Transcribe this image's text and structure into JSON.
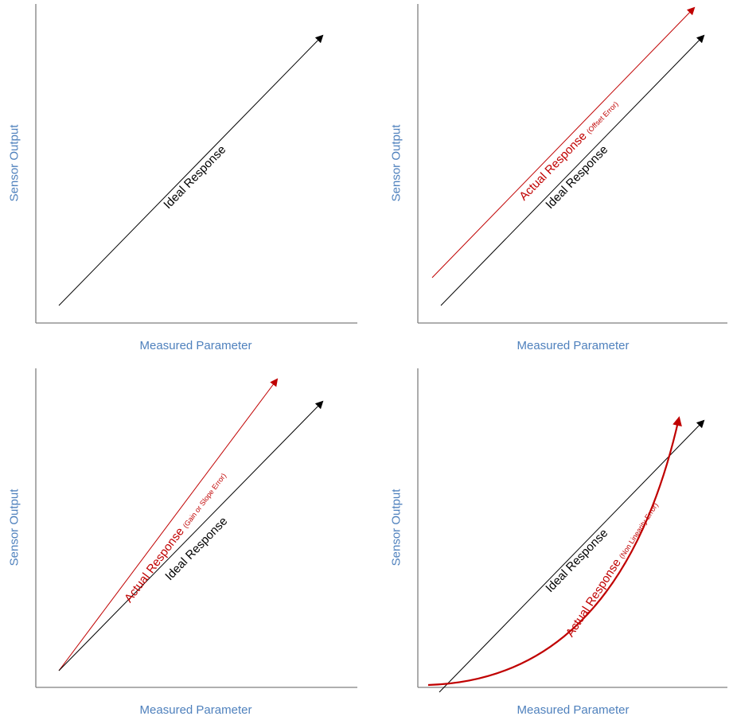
{
  "colors": {
    "axis_title": "#4f81bd",
    "ideal": "#000000",
    "actual": "#c00000",
    "axis": "#7f7f7f"
  },
  "panels": [
    {
      "xlabel": "Measured Parameter",
      "ylabel": "Sensor Output",
      "ideal_label": "Ideal Response",
      "actual_label": "",
      "actual_note": "",
      "actual_kind": "none"
    },
    {
      "xlabel": "Measured Parameter",
      "ylabel": "Sensor Output",
      "ideal_label": "Ideal Response",
      "actual_label": "Actual Response",
      "actual_note": "(Offset Error)",
      "actual_kind": "offset"
    },
    {
      "xlabel": "Measured Parameter",
      "ylabel": "Sensor Output",
      "ideal_label": "Ideal Response",
      "actual_label": "Actual Response",
      "actual_note": "(Gain or Slope Error)",
      "actual_kind": "gain"
    },
    {
      "xlabel": "Measured Parameter",
      "ylabel": "Sensor Output",
      "ideal_label": "Ideal Response",
      "actual_label": "Actual Response",
      "actual_note": "(Non Linearity Error)",
      "actual_kind": "nonlinear"
    }
  ]
}
